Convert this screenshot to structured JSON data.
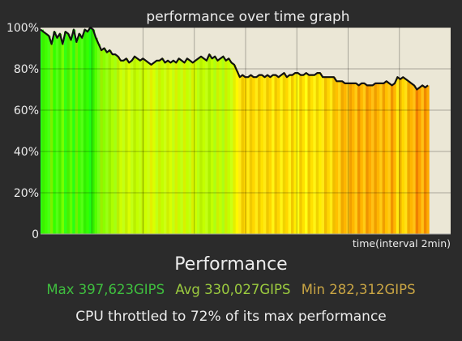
{
  "colors": {
    "background": "#2b2b2b",
    "plot_background": "#ebe7d6",
    "line": "#111111",
    "max": "#3fbf3f",
    "avg": "#9ccc3f",
    "min": "#c9a544"
  },
  "chart_data": {
    "type": "line",
    "title": "performance over time graph",
    "xlabel": "time(interval 2min)",
    "ylabel": "",
    "ylim": [
      0,
      100
    ],
    "y_ticks": [
      "0",
      "20%",
      "40%",
      "60%",
      "80%",
      "100%"
    ],
    "grid": true,
    "x": [
      0,
      1,
      2,
      3,
      4,
      5,
      6,
      7,
      8,
      9,
      10,
      11,
      12,
      13,
      14,
      15,
      16,
      17,
      18,
      19,
      20,
      21,
      22,
      23,
      24,
      25,
      26,
      27,
      28,
      29,
      30,
      31,
      32,
      33,
      34,
      35,
      36,
      37,
      38,
      39,
      40,
      41,
      42,
      43,
      44,
      45,
      46,
      47,
      48,
      49,
      50,
      51,
      52,
      53,
      54,
      55,
      56,
      57,
      58,
      59,
      60,
      61,
      62,
      63,
      64,
      65,
      66,
      67,
      68,
      69,
      70,
      71,
      72,
      73,
      74,
      75,
      76,
      77,
      78,
      79,
      80,
      81,
      82,
      83,
      84,
      85,
      86,
      87,
      88,
      89,
      90,
      91,
      92,
      93,
      94,
      95,
      96,
      97,
      98,
      99,
      100,
      101,
      102,
      103,
      104,
      105,
      106,
      107,
      108,
      109,
      110,
      111,
      112,
      113,
      114,
      115,
      116,
      117,
      118,
      119,
      120,
      121,
      122,
      123,
      124,
      125,
      126,
      127,
      128,
      129,
      130,
      131,
      132,
      133,
      134,
      135,
      136,
      137,
      138,
      139,
      140
    ],
    "series": [
      {
        "values": [
          99,
          98,
          97,
          96,
          92,
          98,
          95,
          97,
          92,
          98,
          97,
          94,
          99,
          93,
          97,
          95,
          99,
          98,
          100,
          99,
          95,
          92,
          89,
          90,
          88,
          89,
          87,
          87,
          86,
          84,
          84,
          85,
          83,
          84,
          86,
          85,
          84,
          85,
          84,
          83,
          82,
          83,
          84,
          84,
          85,
          83,
          84,
          83,
          84,
          83,
          85,
          84,
          83,
          85,
          84,
          83,
          84,
          85,
          86,
          85,
          84,
          87,
          85,
          86,
          84,
          85,
          86,
          84,
          85,
          83,
          82,
          79,
          76,
          77,
          76,
          76,
          77,
          76,
          76,
          77,
          77,
          76,
          77,
          76,
          77,
          77,
          76,
          77,
          78,
          76,
          77,
          77,
          78,
          78,
          77,
          77,
          78,
          77,
          77,
          77,
          78,
          78,
          76,
          76,
          76,
          76,
          76,
          74,
          74,
          74,
          73,
          73,
          73,
          73,
          73,
          72,
          73,
          73,
          72,
          72,
          72,
          73,
          73,
          73,
          73,
          74,
          73,
          72,
          73,
          76,
          75,
          76,
          75,
          74,
          73,
          72,
          70,
          71,
          72,
          71,
          72
        ]
      }
    ]
  },
  "summary": {
    "heading": "Performance",
    "max": "Max 397,623GIPS",
    "avg": "Avg 330,027GIPS",
    "min": "Min 282,312GIPS",
    "throttle": "CPU throttled to 72% of its max performance"
  }
}
